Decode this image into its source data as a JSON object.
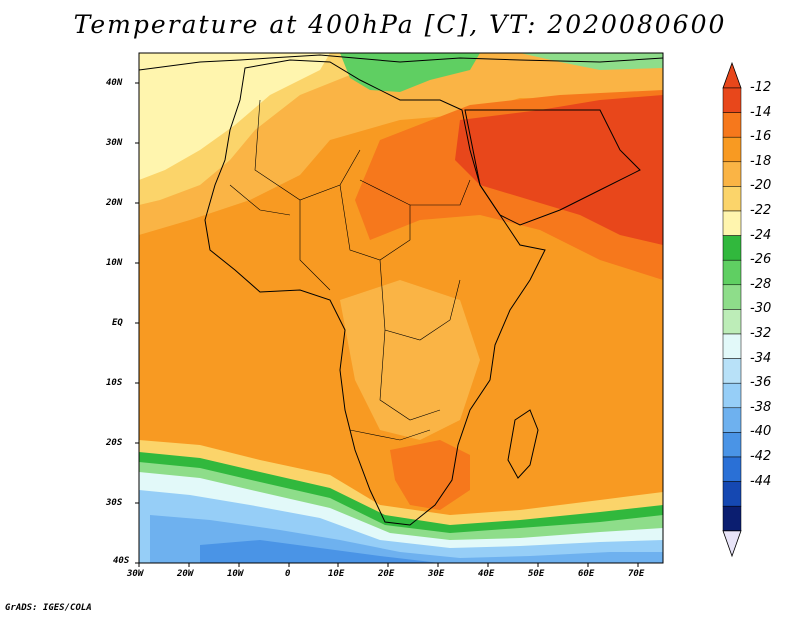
{
  "title": "Temperature at 400hPa [C], VT: 2020080600",
  "footer": "GrADS: IGES/COLA",
  "map": {
    "lon_range": [
      -30,
      75
    ],
    "lat_range": [
      -40,
      45
    ],
    "lon_ticks": [
      "30W",
      "20W",
      "10W",
      "0",
      "10E",
      "20E",
      "30E",
      "40E",
      "50E",
      "60E",
      "70E"
    ],
    "lat_ticks": [
      "40N",
      "30N",
      "20N",
      "10N",
      "EQ",
      "10S",
      "20S",
      "30S",
      "40S"
    ]
  },
  "colorbar": {
    "labels": [
      "-12",
      "-14",
      "-16",
      "-18",
      "-20",
      "-22",
      "-24",
      "-26",
      "-28",
      "-30",
      "-32",
      "-34",
      "-36",
      "-38",
      "-40",
      "-42",
      "-44"
    ],
    "colors": [
      "#e8471b",
      "#f6781c",
      "#f89a22",
      "#fab445",
      "#fbd46a",
      "#fff5ae",
      "#31b83d",
      "#5fcf62",
      "#8edd8a",
      "#bdedb8",
      "#e2f9f9",
      "#b8e1f8",
      "#96cef7",
      "#6eb1ef",
      "#4a94e6",
      "#2a70d6",
      "#1548b2",
      "#0b1e70",
      "#e8e4f8"
    ]
  }
}
